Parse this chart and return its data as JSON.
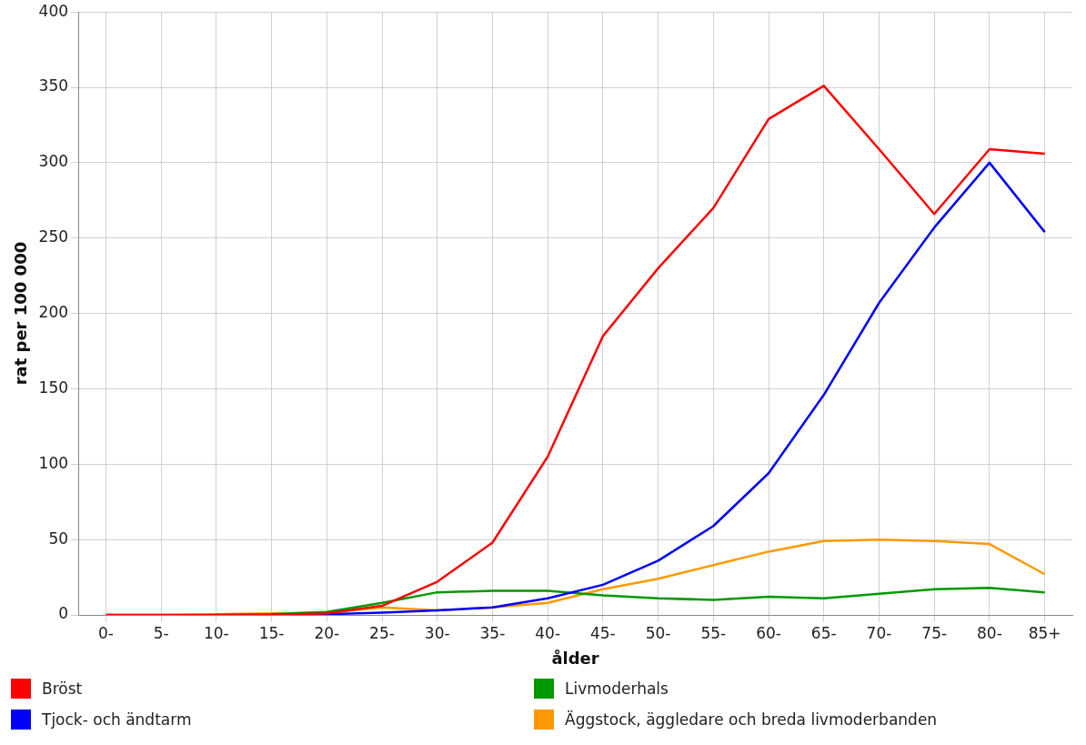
{
  "chart_data": {
    "type": "line",
    "xlabel": "ålder",
    "ylabel": "rat per 100 000",
    "categories": [
      "0-",
      "5-",
      "10-",
      "15-",
      "20-",
      "25-",
      "30-",
      "35-",
      "40-",
      "45-",
      "50-",
      "55-",
      "60-",
      "65-",
      "70-",
      "75-",
      "80-",
      "85+"
    ],
    "ylim": [
      0,
      400
    ],
    "yticks": [
      0,
      50,
      100,
      150,
      200,
      250,
      300,
      350,
      400
    ],
    "grid": true,
    "legend": "bottom",
    "marker": "none",
    "line_style": "solid",
    "series": [
      {
        "name": "Bröst",
        "color": "#ff0000",
        "values": [
          0,
          0,
          0,
          0,
          1,
          6,
          22,
          48,
          105,
          185,
          230,
          270,
          329,
          351,
          309,
          266,
          309,
          306
        ]
      },
      {
        "name": "Tjock- och ändtarm",
        "color": "#0000ff",
        "values": [
          null,
          null,
          null,
          0,
          0.5,
          1.5,
          3,
          5,
          11,
          20,
          36,
          59,
          94,
          146,
          207,
          257,
          300,
          254
        ]
      },
      {
        "name": "Livmoderhals",
        "color": "#009900",
        "values": [
          null,
          null,
          0,
          0.5,
          2,
          8,
          15,
          16,
          16,
          13,
          11,
          10,
          12,
          11,
          14,
          17,
          18,
          15
        ]
      },
      {
        "name": "Äggstock, äggledare och breda livmoderbanden",
        "color": "#ff9900",
        "values": [
          0,
          0,
          0.5,
          1,
          1.5,
          5,
          3,
          5,
          8,
          17,
          24,
          33,
          42,
          49,
          50,
          49,
          47,
          27
        ]
      }
    ]
  }
}
